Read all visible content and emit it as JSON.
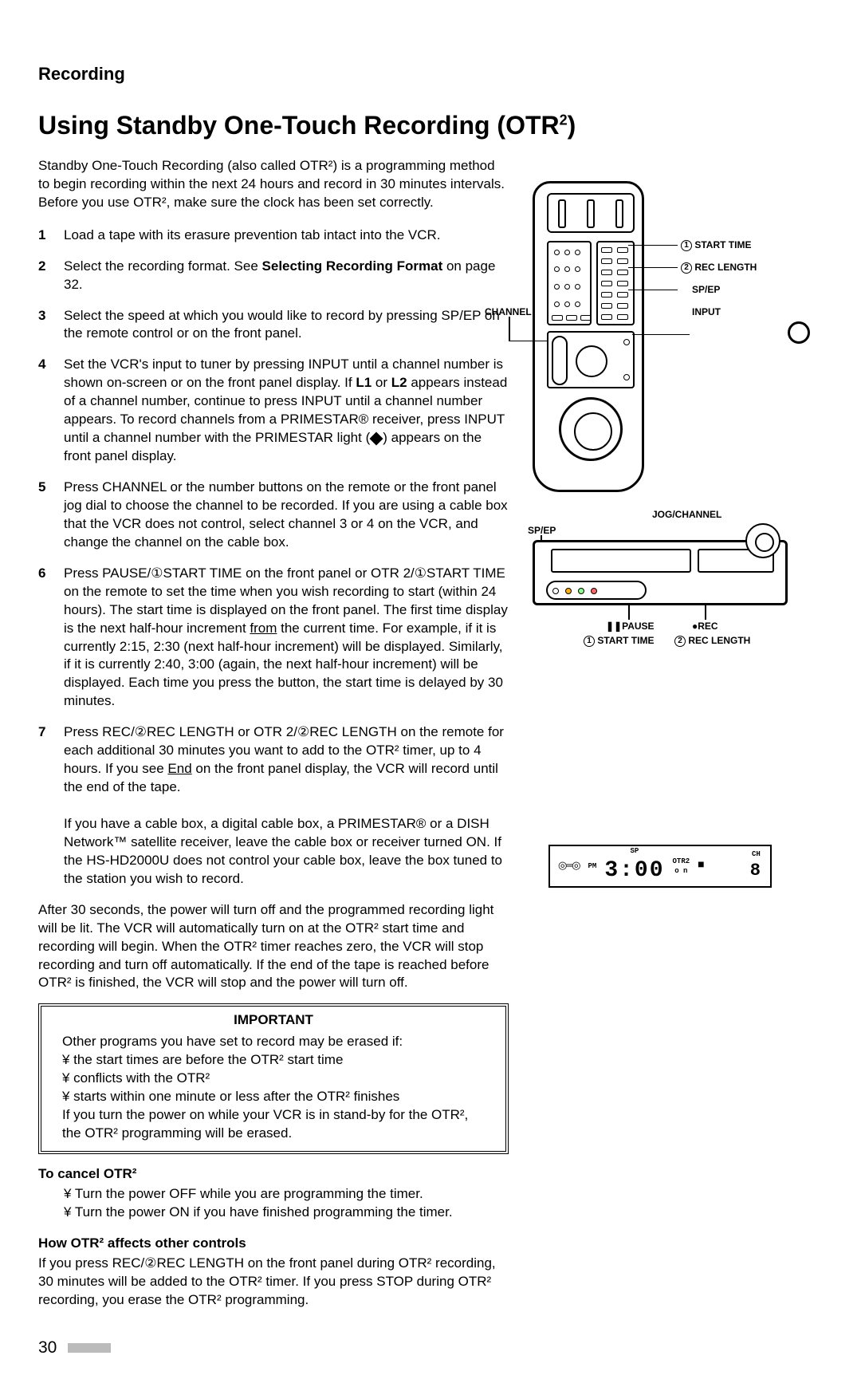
{
  "section_label": "Recording",
  "title_pre": "Using Standby One-Touch Recording (OTR",
  "title_sup": "2",
  "title_post": ")",
  "intro": "Standby One-Touch Recording (also called OTR²) is a programming method to begin recording within the next 24 hours and record in 30 minutes intervals.  Before you use OTR², make sure the clock has been set correctly.",
  "steps": [
    "Load a tape with its erasure prevention tab intact into the VCR.",
    "Select the recording format.  See <b>Selecting Recording Format</b> on page 32.",
    "Select the speed at which you would like to record by pressing SP/EP on the remote control or on the front panel.",
    "Set the VCR's input to tuner by pressing INPUT until a channel number is shown on-screen or on the front panel display.  If <b>L1</b> or <b>L2</b> appears instead of a channel number, continue to press INPUT until a channel number appears.  To record channels from a PRIMESTAR® receiver, press INPUT until a channel number with the PRIMESTAR light (<span class=\"diamond\"></span>) appears on the front panel display.",
    "Press CHANNEL or the number buttons on the remote or the front panel jog dial to choose the channel to be recorded.  If you are using a cable box that the VCR does not control, select channel 3 or 4 on the VCR, and change the channel on the cable box.",
    "Press PAUSE/①START TIME on the front panel or OTR 2/①START TIME on the remote to set the time when you wish recording to start (within 24 hours).  The start time is displayed on the front panel.  The first time display is the next half-hour increment <span class=\"under\">from</span> the current time.  For example, if it is currently 2:15, 2:30 (next half-hour increment) will be displayed.  Similarly, if it is currently 2:40, 3:00 (again, the next half-hour increment) will be displayed.  Each time you press the button, the start time is delayed by 30 minutes.",
    "Press REC/②REC LENGTH or OTR 2/②REC LENGTH on the remote for each additional 30 minutes you want to add to the OTR² timer, up to 4 hours.  If you see <span class=\"under\">End</span> on the front panel display, the VCR will record until the end of the tape.<br><br>If you have a cable box, a digital cable box, a PRIMESTAR® or a DISH Network™ satellite receiver, leave the cable box or receiver turned ON.  If the HS-HD2000U does not control your cable box, leave the box tuned to the station you wish to record."
  ],
  "after": "After 30 seconds, the power will turn off and the programmed recording light will be lit.  The VCR will automatically turn on at the OTR² start time and recording will begin.  When the OTR² timer reaches zero, the VCR will stop recording and turn off automatically.  If the end of the tape is reached before OTR² is finished, the VCR will stop and the power will turn off.",
  "important": {
    "title": "IMPORTANT",
    "lines": [
      "Other programs you have set to record may be erased if:",
      "¥ the start times are before the OTR² start time",
      "¥ conflicts with the OTR²",
      "¥ starts within one minute or less after the OTR² finishes",
      "If you turn the power on while your VCR is in stand-by for the OTR², the OTR² programming will be erased."
    ]
  },
  "cancel_head": "To cancel OTR²",
  "cancel_lines": [
    "¥ Turn the power OFF while you are programming the timer.",
    "¥ Turn the power ON if you have finished programming the timer."
  ],
  "affects_head": "How OTR² affects other controls",
  "affects_body": "If you press REC/②REC LENGTH on the front panel during OTR² recording, 30 minutes will be added to the OTR² timer.  If you press STOP during OTR² recording, you erase the OTR² programming.",
  "page_number": "30",
  "remote_labels": {
    "start_time": "START TIME",
    "rec_length": "REC LENGTH",
    "sp_ep": "SP/EP",
    "input": "INPUT",
    "channel": "CHANNEL"
  },
  "vcr_labels": {
    "jog_channel": "JOG/CHANNEL",
    "sp_ep": "SP/EP",
    "pause": "PAUSE",
    "rec": "REC",
    "start_time": "START TIME",
    "rec_length": "REC LENGTH"
  },
  "lcd": {
    "pm": "PM",
    "sp": "SP",
    "otr2": "OTR2",
    "time": "3:00",
    "on": "o n",
    "ch": "CH",
    "ch_num": "8"
  }
}
